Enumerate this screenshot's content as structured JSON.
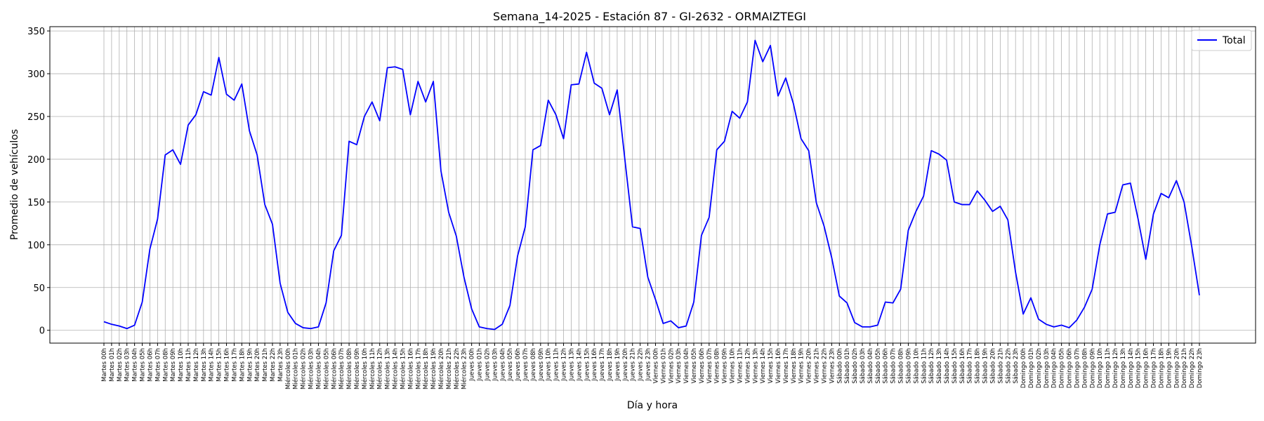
{
  "chart_data": {
    "type": "line",
    "title": "Semana_14-2025 - Estación 87 - GI-2632  - ORMAIZTEGI",
    "xlabel": "Día y hora",
    "ylabel": "Promedio de vehículos",
    "ylim": [
      -15,
      355
    ],
    "yticks": [
      0,
      50,
      100,
      150,
      200,
      250,
      300,
      350
    ],
    "grid": true,
    "legend_position": "top-right",
    "line_color": "#0000ff",
    "x": [
      "Martes 00h",
      "Martes 01h",
      "Martes 02h",
      "Martes 03h",
      "Martes 04h",
      "Martes 05h",
      "Martes 06h",
      "Martes 07h",
      "Martes 08h",
      "Martes 09h",
      "Martes 10h",
      "Martes 11h",
      "Martes 12h",
      "Martes 13h",
      "Martes 14h",
      "Martes 15h",
      "Martes 16h",
      "Martes 17h",
      "Martes 18h",
      "Martes 19h",
      "Martes 20h",
      "Martes 21h",
      "Martes 22h",
      "Martes 23h",
      "Miércoles 00h",
      "Miércoles 01h",
      "Miércoles 02h",
      "Miércoles 03h",
      "Miércoles 04h",
      "Miércoles 05h",
      "Miércoles 06h",
      "Miércoles 07h",
      "Miércoles 08h",
      "Miércoles 09h",
      "Miércoles 10h",
      "Miércoles 11h",
      "Miércoles 12h",
      "Miércoles 13h",
      "Miércoles 14h",
      "Miércoles 15h",
      "Miércoles 16h",
      "Miércoles 17h",
      "Miércoles 18h",
      "Miércoles 19h",
      "Miércoles 20h",
      "Miércoles 21h",
      "Miércoles 22h",
      "Miércoles 23h",
      "Jueves 00h",
      "Jueves 01h",
      "Jueves 02h",
      "Jueves 03h",
      "Jueves 04h",
      "Jueves 05h",
      "Jueves 06h",
      "Jueves 07h",
      "Jueves 08h",
      "Jueves 09h",
      "Jueves 10h",
      "Jueves 11h",
      "Jueves 12h",
      "Jueves 13h",
      "Jueves 14h",
      "Jueves 15h",
      "Jueves 16h",
      "Jueves 17h",
      "Jueves 18h",
      "Jueves 19h",
      "Jueves 20h",
      "Jueves 21h",
      "Jueves 22h",
      "Jueves 23h",
      "Viernes 00h",
      "Viernes 01h",
      "Viernes 02h",
      "Viernes 03h",
      "Viernes 04h",
      "Viernes 05h",
      "Viernes 06h",
      "Viernes 07h",
      "Viernes 08h",
      "Viernes 09h",
      "Viernes 10h",
      "Viernes 11h",
      "Viernes 12h",
      "Viernes 13h",
      "Viernes 14h",
      "Viernes 15h",
      "Viernes 16h",
      "Viernes 17h",
      "Viernes 18h",
      "Viernes 19h",
      "Viernes 20h",
      "Viernes 21h",
      "Viernes 22h",
      "Viernes 23h",
      "Sábado 00h",
      "Sábado 01h",
      "Sábado 02h",
      "Sábado 03h",
      "Sábado 04h",
      "Sábado 05h",
      "Sábado 06h",
      "Sábado 07h",
      "Sábado 08h",
      "Sábado 09h",
      "Sábado 10h",
      "Sábado 11h",
      "Sábado 12h",
      "Sábado 13h",
      "Sábado 14h",
      "Sábado 15h",
      "Sábado 16h",
      "Sábado 17h",
      "Sábado 18h",
      "Sábado 19h",
      "Sábado 20h",
      "Sábado 21h",
      "Sábado 22h",
      "Sábado 23h",
      "Domingo 00h",
      "Domingo 01h",
      "Domingo 02h",
      "Domingo 03h",
      "Domingo 04h",
      "Domingo 05h",
      "Domingo 06h",
      "Domingo 07h",
      "Domingo 08h",
      "Domingo 09h",
      "Domingo 10h",
      "Domingo 11h",
      "Domingo 12h",
      "Domingo 13h",
      "Domingo 14h",
      "Domingo 15h",
      "Domingo 16h",
      "Domingo 17h",
      "Domingo 18h",
      "Domingo 19h",
      "Domingo 20h",
      "Domingo 21h",
      "Domingo 22h",
      "Domingo 23h"
    ],
    "series": [
      {
        "name": "Total",
        "values": [
          10,
          7,
          5,
          2,
          6,
          33,
          95,
          130,
          205,
          211,
          194,
          240,
          252,
          279,
          275,
          319,
          276,
          269,
          288,
          233,
          205,
          147,
          124,
          55,
          21,
          8,
          3,
          2,
          4,
          32,
          93,
          111,
          221,
          217,
          250,
          267,
          245,
          307,
          308,
          305,
          252,
          291,
          267,
          291,
          186,
          138,
          110,
          62,
          25,
          4,
          2,
          1,
          7,
          29,
          87,
          121,
          211,
          216,
          269,
          252,
          224,
          287,
          288,
          325,
          289,
          283,
          252,
          281,
          200,
          121,
          119,
          62,
          36,
          8,
          11,
          3,
          5,
          33,
          111,
          132,
          211,
          221,
          256,
          248,
          267,
          339,
          314,
          333,
          274,
          295,
          265,
          224,
          210,
          149,
          122,
          85,
          40,
          32,
          9,
          4,
          4,
          6,
          33,
          32,
          48,
          117,
          139,
          157,
          210,
          206,
          199,
          150,
          147,
          147,
          163,
          152,
          139,
          145,
          129,
          68,
          19,
          38,
          13,
          7,
          4,
          6,
          3,
          12,
          27,
          48,
          100,
          136,
          138,
          170,
          172,
          130,
          83,
          136,
          160,
          155,
          175,
          150,
          98,
          41
        ]
      }
    ]
  }
}
